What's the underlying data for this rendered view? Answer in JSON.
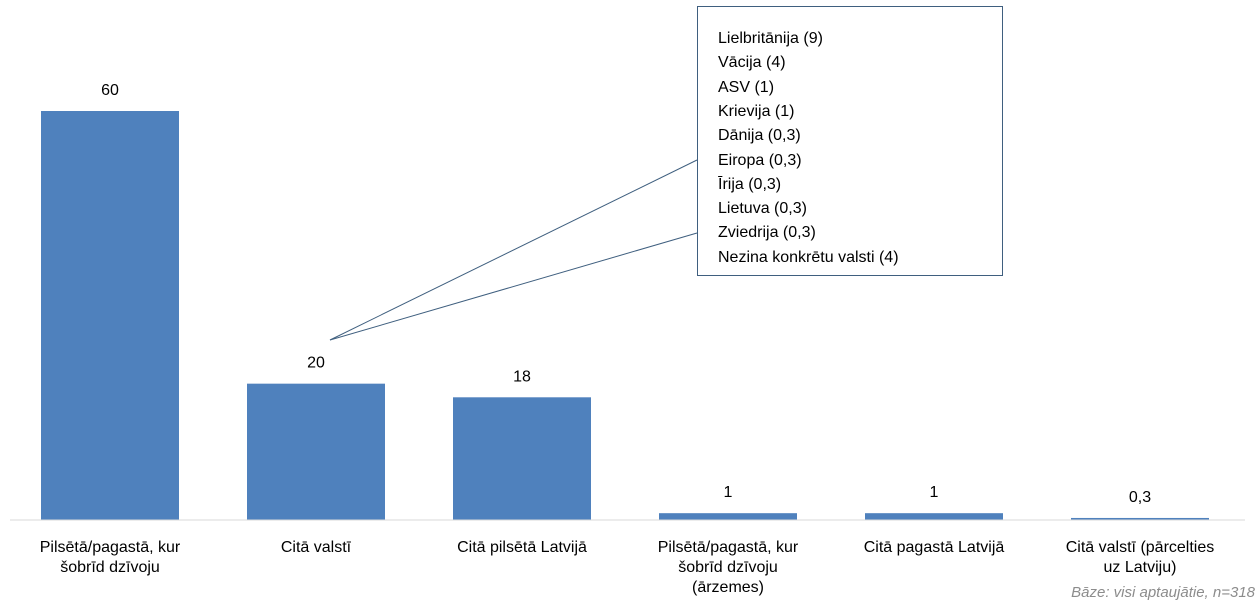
{
  "chart_data": {
    "type": "bar",
    "categories": [
      "Pilsētā/pagastā, kur\nšobrīd dzīvoju",
      "Citā valstī",
      "Citā pilsētā Latvijā",
      "Pilsētā/pagastā, kur\nšobrīd dzīvoju\n(ārzemes)",
      "Citā pagastā Latvijā",
      "Citā valstī (pārcelties\nuz Latviju)"
    ],
    "values": [
      60,
      20,
      18,
      1,
      1,
      0.3
    ],
    "value_labels": [
      "60",
      "20",
      "18",
      "1",
      "1",
      "0,3"
    ],
    "color": "#4f81bd",
    "callout": [
      "Lielbritānija (9)",
      "Vācija (4)",
      "ASV (1)",
      "Krievija (1)",
      "Dānija (0,3)",
      "Eiropa (0,3)",
      "Īrija (0,3)",
      "Lietuva (0,3)",
      "Zviedrija (0,3)",
      "Nezina konkrētu valsti (4)"
    ],
    "footnote": "Bāze: visi aptaujātie, n=318"
  }
}
